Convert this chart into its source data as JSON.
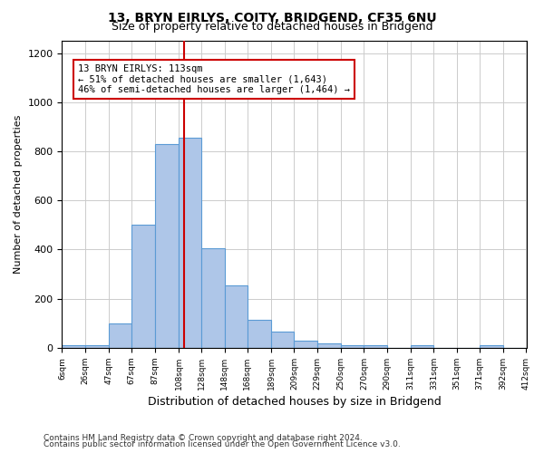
{
  "title1": "13, BRYN EIRLYS, COITY, BRIDGEND, CF35 6NU",
  "title2": "Size of property relative to detached houses in Bridgend",
  "xlabel": "Distribution of detached houses by size in Bridgend",
  "ylabel": "Number of detached properties",
  "bar_color": "#aec6e8",
  "bar_edge_color": "#5b9bd5",
  "annotation_box_color": "#cc0000",
  "vline_color": "#cc0000",
  "annotation_text": "13 BRYN EIRLYS: 113sqm\n← 51% of detached houses are smaller (1,643)\n46% of semi-detached houses are larger (1,464) →",
  "property_size": 113,
  "bins": [
    6,
    26,
    47,
    67,
    87,
    108,
    128,
    148,
    168,
    189,
    209,
    229,
    250,
    270,
    290,
    311,
    331,
    351,
    371,
    392,
    412
  ],
  "counts": [
    10,
    10,
    100,
    500,
    830,
    855,
    405,
    255,
    115,
    65,
    30,
    20,
    12,
    12,
    0,
    12,
    0,
    0,
    10,
    0
  ],
  "footer1": "Contains HM Land Registry data © Crown copyright and database right 2024.",
  "footer2": "Contains public sector information licensed under the Open Government Licence v3.0.",
  "bg_color": "#ffffff",
  "grid_color": "#cccccc",
  "ylim": [
    0,
    1250
  ]
}
